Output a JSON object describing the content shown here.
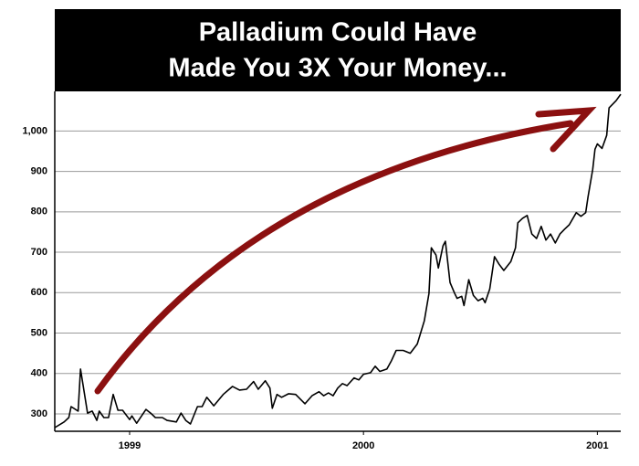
{
  "chart_data": {
    "type": "line",
    "title": [
      "Palladium Could Have",
      "Made You 3X Your Money..."
    ],
    "x": [
      1998.68,
      1998.72,
      1998.74,
      1998.75,
      1998.78,
      1998.79,
      1998.82,
      1998.84,
      1998.86,
      1998.87,
      1998.89,
      1998.91,
      1998.93,
      1998.95,
      1998.97,
      1999.0,
      1999.01,
      1999.03,
      1999.07,
      1999.09,
      1999.11,
      1999.14,
      1999.16,
      1999.2,
      1999.22,
      1999.24,
      1999.26,
      1999.29,
      1999.31,
      1999.33,
      1999.36,
      1999.4,
      1999.44,
      1999.47,
      1999.5,
      1999.53,
      1999.55,
      1999.58,
      1999.6,
      1999.61,
      1999.63,
      1999.65,
      1999.68,
      1999.71,
      1999.75,
      1999.78,
      1999.81,
      1999.83,
      1999.85,
      1999.87,
      1999.89,
      1999.91,
      1999.93,
      1999.96,
      1999.98,
      2000.0,
      2000.03,
      2000.05,
      2000.07,
      2000.1,
      2000.12,
      2000.14,
      2000.17,
      2000.2,
      2000.23,
      2000.26,
      2000.28,
      2000.29,
      2000.31,
      2000.32,
      2000.34,
      2000.35,
      2000.37,
      2000.39,
      2000.4,
      2000.42,
      2000.43,
      2000.45,
      2000.47,
      2000.49,
      2000.51,
      2000.52,
      2000.54,
      2000.56,
      2000.58,
      2000.6,
      2000.63,
      2000.65,
      2000.66,
      2000.68,
      2000.7,
      2000.72,
      2000.74,
      2000.76,
      2000.78,
      2000.8,
      2000.82,
      2000.84,
      2000.86,
      2000.88,
      2000.91,
      2000.93,
      2000.95,
      2000.96,
      2000.98,
      2000.99,
      2001.0,
      2001.02,
      2001.04,
      2001.05,
      2001.08,
      2001.1
    ],
    "values": [
      266,
      280,
      291,
      318,
      307,
      411,
      302,
      307,
      284,
      307,
      291,
      291,
      348,
      309,
      309,
      286,
      295,
      277,
      311,
      302,
      291,
      291,
      284,
      280,
      302,
      284,
      275,
      318,
      318,
      341,
      320,
      348,
      368,
      359,
      361,
      380,
      361,
      382,
      364,
      314,
      348,
      341,
      350,
      348,
      325,
      345,
      355,
      345,
      352,
      345,
      364,
      375,
      370,
      389,
      384,
      398,
      402,
      418,
      405,
      411,
      432,
      457,
      457,
      450,
      473,
      530,
      598,
      711,
      693,
      661,
      716,
      727,
      625,
      598,
      586,
      591,
      568,
      632,
      593,
      580,
      586,
      575,
      609,
      689,
      670,
      655,
      677,
      711,
      773,
      784,
      791,
      745,
      734,
      764,
      730,
      745,
      723,
      745,
      757,
      768,
      798,
      789,
      798,
      836,
      905,
      955,
      968,
      957,
      989,
      1057,
      1075,
      1091
    ],
    "color": "#000000",
    "xlim": [
      1998.68,
      2001.1
    ],
    "xticks": [
      1999,
      2000,
      2001
    ],
    "ylim": [
      257,
      1098
    ],
    "yticks": [
      300,
      400,
      500,
      600,
      700,
      800,
      900,
      {
        "value": 1000,
        "label": "1,000"
      }
    ],
    "grid": true
  }
}
